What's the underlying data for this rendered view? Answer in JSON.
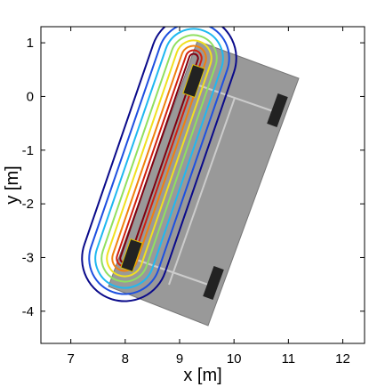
{
  "chart_data": {
    "type": "line",
    "xlabel": "x [m]",
    "ylabel": "y [m]",
    "xlim": [
      6.45,
      12.4
    ],
    "ylim": [
      -4.6,
      1.3
    ],
    "xticks": [
      7,
      8,
      9,
      10,
      11,
      12
    ],
    "yticks": [
      -4,
      -3,
      -2,
      -1,
      0,
      1
    ]
  }
}
